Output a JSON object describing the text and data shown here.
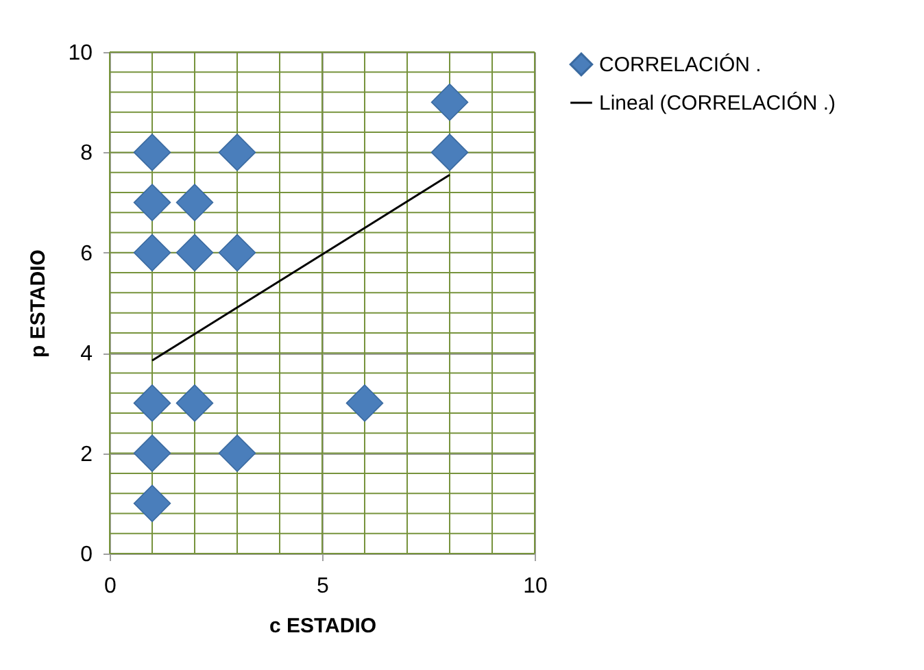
{
  "chart_data": {
    "type": "scatter",
    "xlabel": "c  ESTADIO",
    "ylabel": "p  ESTADIO",
    "xlim": [
      0,
      10
    ],
    "ylim": [
      0,
      10
    ],
    "xticks": [
      0,
      5,
      10
    ],
    "yticks": [
      0,
      2,
      4,
      6,
      8,
      10
    ],
    "grid": true,
    "legend": "right",
    "series": [
      {
        "name": "CORRELACIÓN .",
        "marker": "diamond",
        "color": "#4a7ebb",
        "x": [
          1,
          1,
          1,
          1,
          1,
          1,
          2,
          2,
          2,
          3,
          3,
          3,
          6,
          8,
          8
        ],
        "values": [
          8,
          7,
          6,
          3,
          2,
          1,
          7,
          6,
          3,
          8,
          6,
          2,
          3,
          9,
          8
        ]
      },
      {
        "name": "Lineal (CORRELACIÓN .)",
        "type": "line",
        "color": "#000000",
        "line_style": "solid",
        "x": [
          1,
          8
        ],
        "values": [
          3.85,
          7.55
        ]
      }
    ]
  }
}
